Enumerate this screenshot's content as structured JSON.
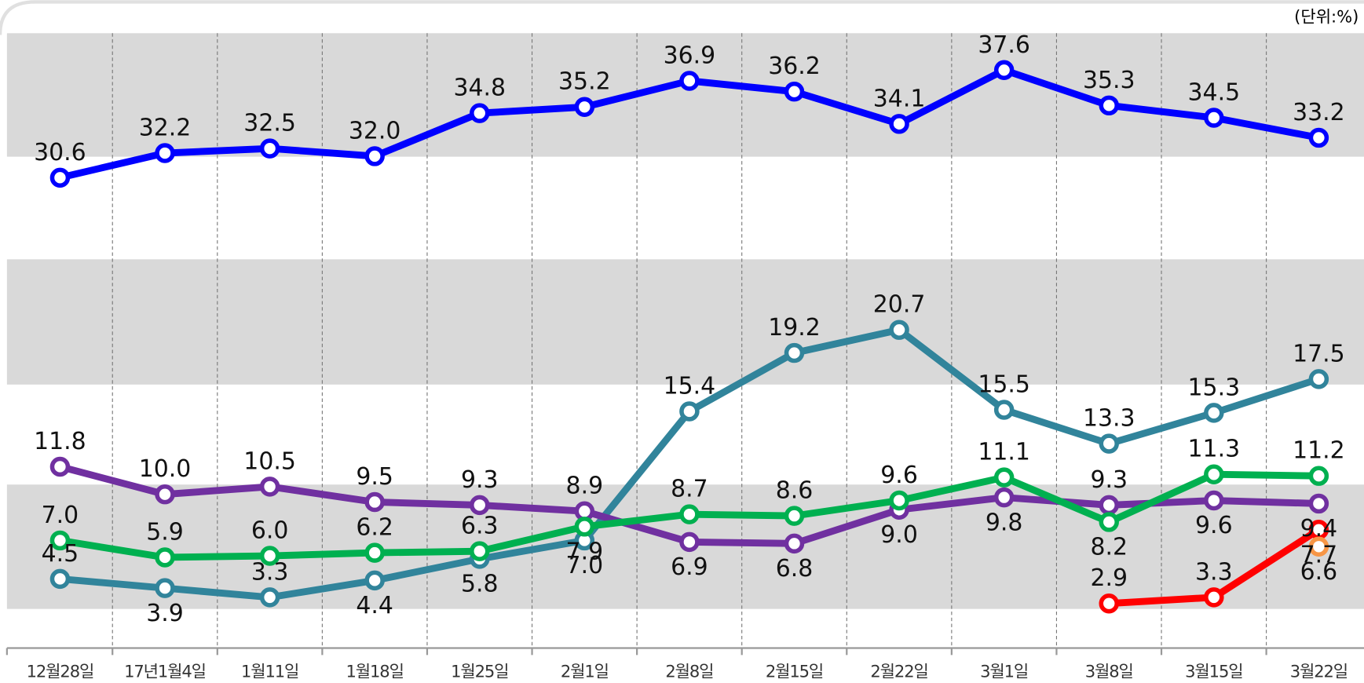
{
  "chart_data": {
    "type": "line",
    "unit_label": "(단위:%)",
    "categories": [
      "12월28일",
      "17년1월4일",
      "1월11일",
      "1월18일",
      "1월25일",
      "2월1일",
      "2월8일",
      "2월15일",
      "2월22일",
      "3월1일",
      "3월8일",
      "3월15일",
      "3월22일"
    ],
    "ylim": [
      0,
      40
    ],
    "series": [
      {
        "color": "#0000ff",
        "values": [
          30.6,
          32.2,
          32.5,
          32.0,
          34.8,
          35.2,
          36.9,
          36.2,
          34.1,
          37.6,
          35.3,
          34.5,
          33.2
        ],
        "value_labels": [
          "30.6",
          "32.2",
          "32.5",
          "32.0",
          "34.8",
          "35.2",
          "36.9",
          "36.2",
          "34.1",
          "37.6",
          "35.3",
          "34.5",
          "33.2"
        ]
      },
      {
        "color": "#31849b",
        "values": [
          4.5,
          3.9,
          3.3,
          4.4,
          5.8,
          7.0,
          15.4,
          19.2,
          20.7,
          15.5,
          13.3,
          15.3,
          17.5
        ],
        "value_labels": [
          "4.5",
          "3.9",
          "3.3",
          "4.4",
          "5.8",
          "7.0",
          "15.4",
          "19.2",
          "20.7",
          "15.5",
          "13.3",
          "15.3",
          "17.5"
        ]
      },
      {
        "color": "#7030a0",
        "values": [
          11.8,
          10.0,
          10.5,
          9.5,
          9.3,
          8.9,
          6.9,
          6.8,
          9.0,
          9.8,
          9.3,
          9.6,
          9.4
        ],
        "value_labels": [
          "11.8",
          "10.0",
          "10.5",
          "9.5",
          "9.3",
          "8.9",
          "6.9",
          "6.8",
          "9.0",
          "9.8",
          "9.3",
          "9.6",
          "9.4"
        ]
      },
      {
        "color": "#00b050",
        "values": [
          7.0,
          5.9,
          6.0,
          6.2,
          6.3,
          7.9,
          8.7,
          8.6,
          9.6,
          11.1,
          8.2,
          11.3,
          11.2
        ],
        "value_labels": [
          "7.0",
          "5.9",
          "6.0",
          "6.2",
          "6.3",
          "7.9",
          "8.7",
          "8.6",
          "9.6",
          "11.1",
          "8.2",
          "11.3",
          "11.2"
        ]
      },
      {
        "color": "#ff0000",
        "values": [
          null,
          null,
          null,
          null,
          null,
          null,
          null,
          null,
          null,
          null,
          2.9,
          3.3,
          7.7
        ],
        "value_labels": [
          null,
          null,
          null,
          null,
          null,
          null,
          null,
          null,
          null,
          null,
          "2.9",
          "3.3",
          "7.7"
        ]
      },
      {
        "color": "#f79646",
        "values": [
          null,
          null,
          null,
          null,
          null,
          null,
          null,
          null,
          null,
          null,
          null,
          null,
          6.6
        ],
        "value_labels": [
          null,
          null,
          null,
          null,
          null,
          null,
          null,
          null,
          null,
          null,
          null,
          null,
          "6.6"
        ]
      }
    ]
  }
}
